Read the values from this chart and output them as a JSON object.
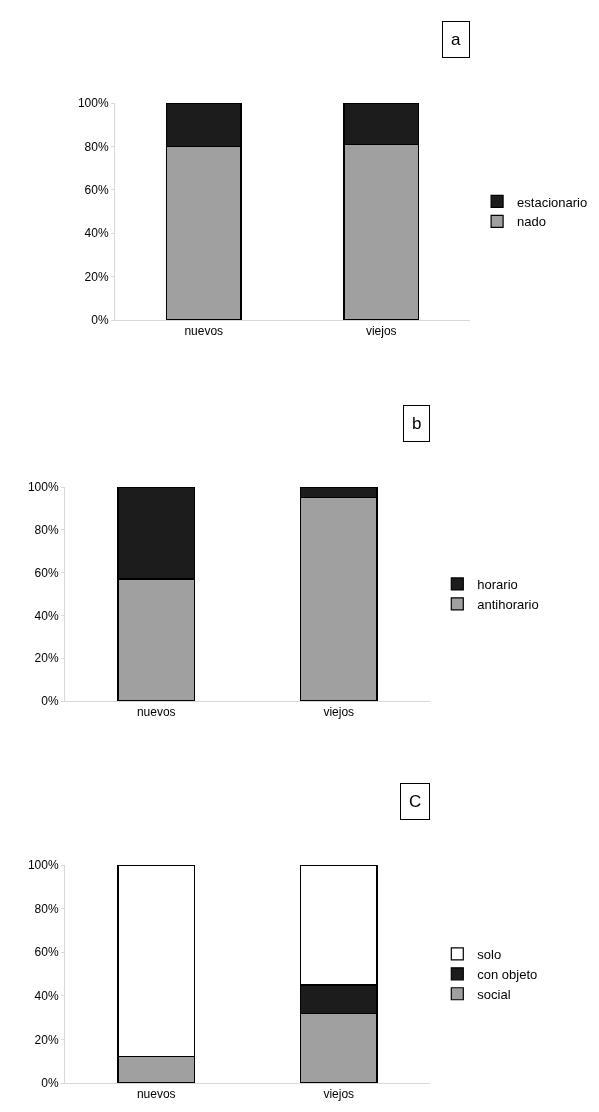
{
  "chart_data": [
    {
      "type": "bar",
      "title": "a",
      "stacked": true,
      "categories": [
        "nuevos",
        "viejos"
      ],
      "ylim": [
        0,
        100
      ],
      "yticks": [
        {
          "value": 0,
          "label": "0%"
        },
        {
          "value": 20,
          "label": "20%"
        },
        {
          "value": 40,
          "label": "40%"
        },
        {
          "value": 60,
          "label": "60%"
        },
        {
          "value": 80,
          "label": "80%"
        },
        {
          "value": 100,
          "label": "100%"
        }
      ],
      "legend": "right",
      "grid": false,
      "series": [
        {
          "name": "nado",
          "color": "#a0a0a0",
          "values": [
            80,
            81
          ]
        },
        {
          "name": "estacionario",
          "color": "#1c1c1c",
          "values": [
            20,
            19
          ]
        }
      ]
    },
    {
      "type": "bar",
      "title": "b",
      "stacked": true,
      "categories": [
        "nuevos",
        "viejos"
      ],
      "ylim": [
        0,
        100
      ],
      "yticks": [
        {
          "value": 0,
          "label": "0%"
        },
        {
          "value": 20,
          "label": "20%"
        },
        {
          "value": 40,
          "label": "40%"
        },
        {
          "value": 60,
          "label": "60%"
        },
        {
          "value": 80,
          "label": "80%"
        },
        {
          "value": 100,
          "label": "100%"
        }
      ],
      "legend": "right",
      "grid": false,
      "series": [
        {
          "name": "antihorario",
          "color": "#a0a0a0",
          "values": [
            57,
            95
          ]
        },
        {
          "name": "horario",
          "color": "#1c1c1c",
          "values": [
            43,
            5
          ]
        }
      ]
    },
    {
      "type": "bar",
      "title": "C",
      "stacked": true,
      "categories": [
        "nuevos",
        "viejos"
      ],
      "ylim": [
        0,
        100
      ],
      "yticks": [
        {
          "value": 0,
          "label": "0%"
        },
        {
          "value": 20,
          "label": "20%"
        },
        {
          "value": 40,
          "label": "40%"
        },
        {
          "value": 60,
          "label": "60%"
        },
        {
          "value": 80,
          "label": "80%"
        },
        {
          "value": 100,
          "label": "100%"
        }
      ],
      "legend": "right",
      "grid": false,
      "series": [
        {
          "name": "social",
          "color": "#a0a0a0",
          "values": [
            12,
            32
          ]
        },
        {
          "name": "con objeto",
          "color": "#1c1c1c",
          "values": [
            0,
            13
          ]
        },
        {
          "name": "solo",
          "color": "#ffffff",
          "values": [
            88,
            55
          ]
        }
      ]
    }
  ]
}
